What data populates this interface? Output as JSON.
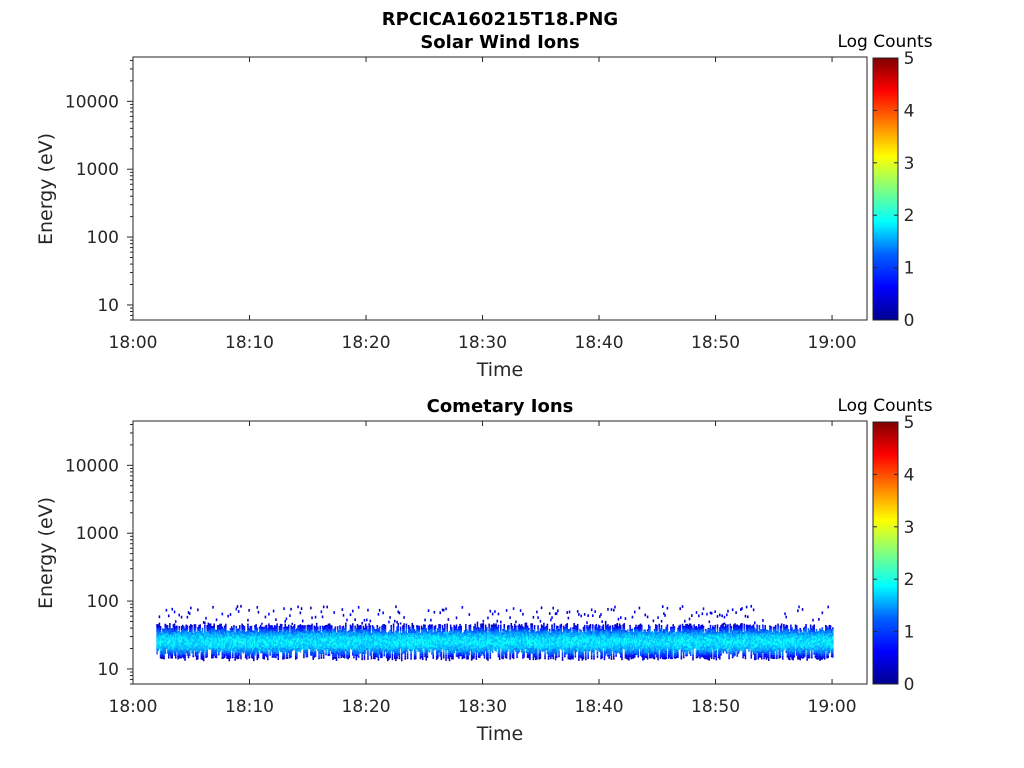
{
  "figure_title": "RPCICA160215T18.PNG",
  "colors": {
    "colormap": [
      "#00008f",
      "#0000ff",
      "#0080ff",
      "#00ffff",
      "#80ff80",
      "#ffff00",
      "#ff8000",
      "#ff0000",
      "#800000"
    ]
  },
  "chart_data": [
    {
      "type": "heatmap",
      "title": "Solar Wind Ions",
      "xlabel": "Time",
      "ylabel": "Energy (eV)",
      "x_ticks": [
        "18:00",
        "18:10",
        "18:20",
        "18:30",
        "18:40",
        "18:50",
        "19:00"
      ],
      "y_ticks": [
        "10",
        "100",
        "1000",
        "10000"
      ],
      "y_scale": "log",
      "xlim": [
        "18:00",
        "19:03"
      ],
      "ylim": [
        6,
        45000
      ],
      "colorbar": {
        "label": "Log Counts",
        "range": [
          0,
          5
        ],
        "ticks": [
          "0",
          "1",
          "2",
          "3",
          "4",
          "5"
        ]
      },
      "counts": []
    },
    {
      "type": "heatmap",
      "title": "Cometary Ions",
      "xlabel": "Time",
      "ylabel": "Energy (eV)",
      "x_ticks": [
        "18:00",
        "18:10",
        "18:20",
        "18:30",
        "18:40",
        "18:50",
        "19:00"
      ],
      "y_ticks": [
        "10",
        "100",
        "1000",
        "10000"
      ],
      "y_scale": "log",
      "xlim": [
        "18:00",
        "19:03"
      ],
      "ylim": [
        6,
        45000
      ],
      "colorbar": {
        "label": "Log Counts",
        "range": [
          0,
          5
        ],
        "ticks": [
          "0",
          "1",
          "2",
          "3",
          "4",
          "5"
        ]
      },
      "data_time_range": [
        "18:02",
        "19:00"
      ],
      "band_energy_eV": [
        15,
        45
      ],
      "band_peak_energy_eV": 25,
      "sparse_upper_energy_eV": [
        45,
        80
      ],
      "peak_log_counts": 2.0
    }
  ]
}
